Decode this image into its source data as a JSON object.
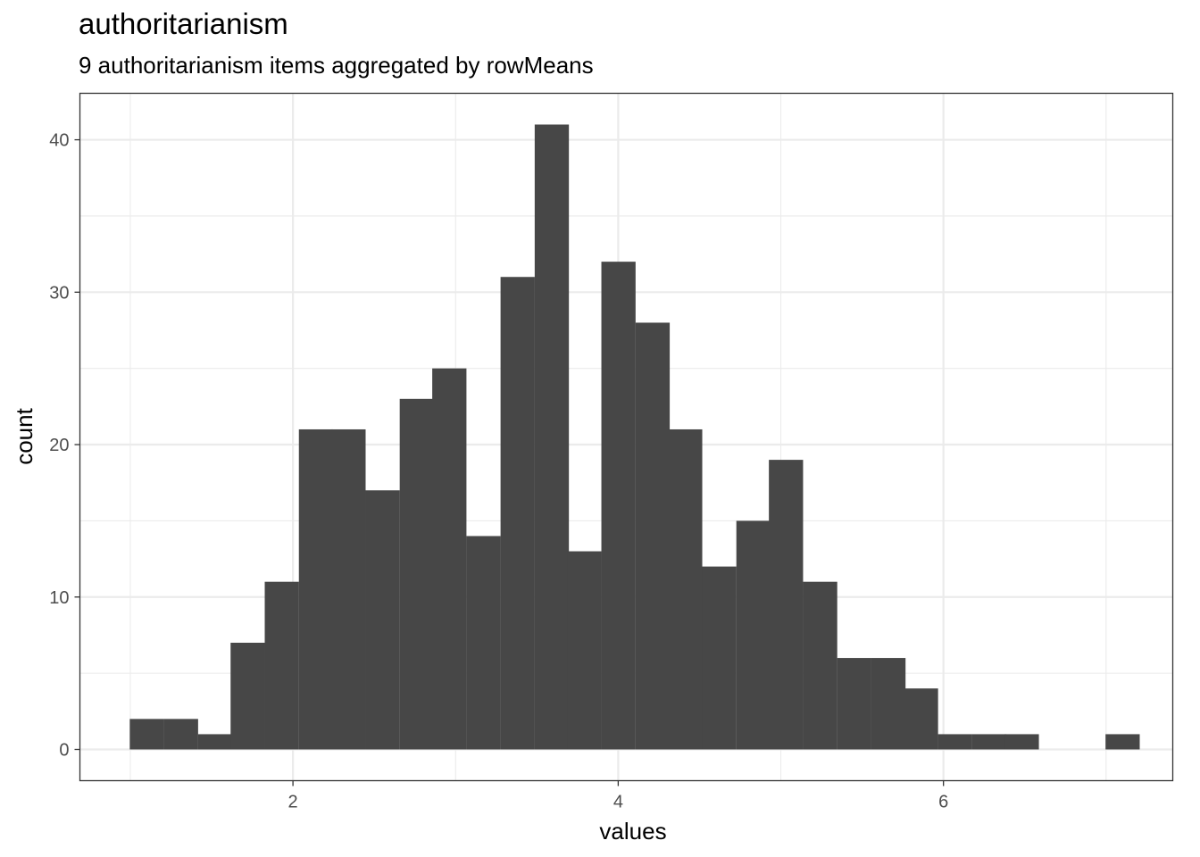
{
  "chart_data": {
    "type": "bar",
    "title": "authoritarianism",
    "subtitle": "9 authoritarianism items aggregated by rowMeans",
    "xlabel": "values",
    "ylabel": "count",
    "xlim": [
      0.69,
      7.41
    ],
    "ylim": [
      -2.05,
      43.05
    ],
    "x_ticks": [
      2,
      4,
      6
    ],
    "y_ticks": [
      0,
      10,
      20,
      30,
      40
    ],
    "x_tick_labels": [
      "2",
      "4",
      "6"
    ],
    "y_tick_labels": [
      "0",
      "10",
      "20",
      "30",
      "40"
    ],
    "bin_width": 0.207,
    "bins": [
      {
        "x": 1.1,
        "count": 2
      },
      {
        "x": 1.31,
        "count": 2
      },
      {
        "x": 1.52,
        "count": 1
      },
      {
        "x": 1.72,
        "count": 7
      },
      {
        "x": 1.93,
        "count": 11
      },
      {
        "x": 2.14,
        "count": 21
      },
      {
        "x": 2.34,
        "count": 21
      },
      {
        "x": 2.55,
        "count": 17
      },
      {
        "x": 2.76,
        "count": 23
      },
      {
        "x": 2.96,
        "count": 25
      },
      {
        "x": 3.17,
        "count": 14
      },
      {
        "x": 3.38,
        "count": 31
      },
      {
        "x": 3.59,
        "count": 41
      },
      {
        "x": 3.79,
        "count": 13
      },
      {
        "x": 4.0,
        "count": 32
      },
      {
        "x": 4.21,
        "count": 28
      },
      {
        "x": 4.41,
        "count": 21
      },
      {
        "x": 4.62,
        "count": 12
      },
      {
        "x": 4.83,
        "count": 15
      },
      {
        "x": 5.03,
        "count": 19
      },
      {
        "x": 5.24,
        "count": 11
      },
      {
        "x": 5.45,
        "count": 6
      },
      {
        "x": 5.66,
        "count": 6
      },
      {
        "x": 5.86,
        "count": 4
      },
      {
        "x": 6.07,
        "count": 1
      },
      {
        "x": 6.28,
        "count": 1
      },
      {
        "x": 6.48,
        "count": 1
      },
      {
        "x": 6.69,
        "count": 0
      },
      {
        "x": 6.9,
        "count": 0
      },
      {
        "x": 7.1,
        "count": 1
      }
    ],
    "bar_color": "#474747",
    "grid": true,
    "theme": "bw"
  }
}
